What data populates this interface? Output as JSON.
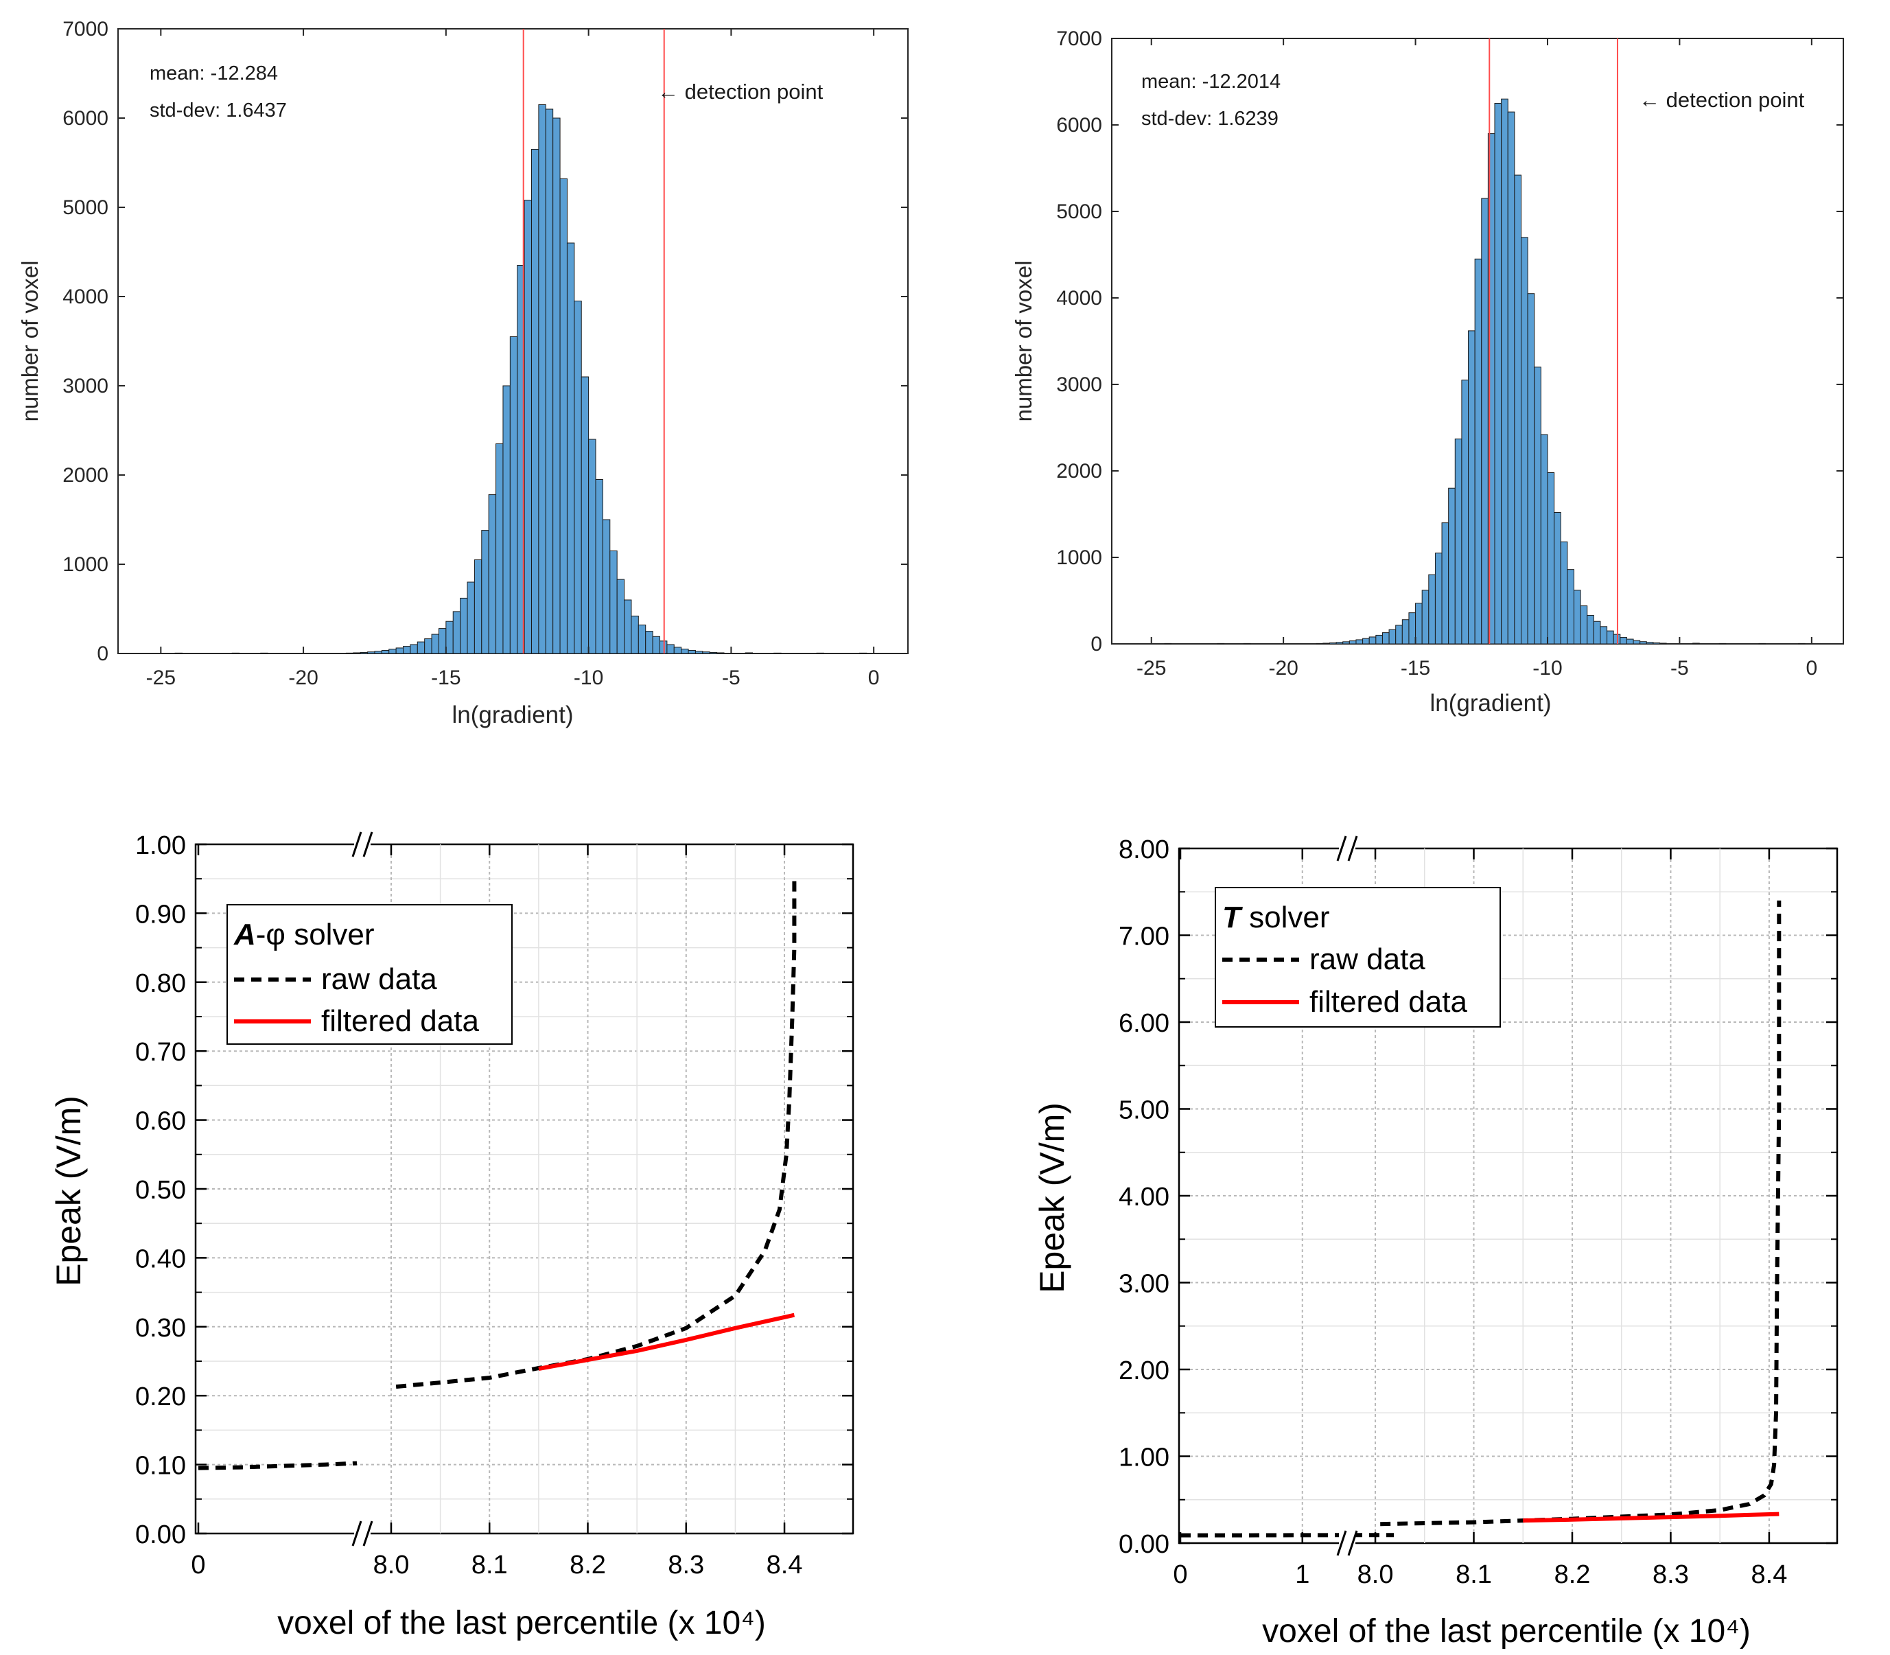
{
  "chart_data": [
    {
      "type": "bar",
      "panel": "top-left",
      "xlabel": "ln(gradient)",
      "ylabel": "number of voxel",
      "xlim": [
        -26.5,
        1.2
      ],
      "ylim": [
        0,
        7000
      ],
      "xticks": [
        -25,
        -20,
        -15,
        -10,
        -5,
        0
      ],
      "yticks": [
        0,
        1000,
        2000,
        3000,
        4000,
        5000,
        6000,
        7000
      ],
      "bin_width": 0.25,
      "bin_start": -18.5,
      "values": [
        5,
        8,
        12,
        18,
        25,
        35,
        48,
        62,
        80,
        100,
        130,
        165,
        215,
        280,
        360,
        470,
        620,
        800,
        1050,
        1380,
        1780,
        2350,
        3000,
        3550,
        4350,
        5080,
        5650,
        6150,
        6100,
        6000,
        5320,
        4600,
        3950,
        3100,
        2400,
        1950,
        1500,
        1150,
        830,
        600,
        420,
        320,
        250,
        190,
        140,
        100,
        70,
        50,
        35,
        25,
        18,
        12,
        8
      ],
      "tail_bins": [
        [
          -24.5,
          5
        ],
        [
          -22.5,
          5
        ],
        [
          -21.5,
          5
        ],
        [
          -4.5,
          8
        ],
        [
          -3.5,
          5
        ],
        [
          -2.0,
          5
        ],
        [
          -0.5,
          5
        ]
      ],
      "vlines": [
        -12.284,
        -7.35
      ],
      "annotations": [
        "mean: -12.284",
        "std-dev: 1.6437",
        "← detection point"
      ]
    },
    {
      "type": "bar",
      "panel": "top-right",
      "xlabel": "ln(gradient)",
      "ylabel": "number of voxel",
      "xlim": [
        -26.5,
        1.2
      ],
      "ylim": [
        0,
        7000
      ],
      "xticks": [
        -25,
        -20,
        -15,
        -10,
        -5,
        0
      ],
      "yticks": [
        0,
        1000,
        2000,
        3000,
        4000,
        5000,
        6000,
        7000
      ],
      "bin_width": 0.25,
      "bin_start": -18.75,
      "values": [
        5,
        8,
        12,
        18,
        25,
        35,
        48,
        62,
        80,
        100,
        130,
        165,
        215,
        280,
        360,
        470,
        620,
        800,
        1050,
        1400,
        1800,
        2370,
        3050,
        3620,
        4450,
        5150,
        5900,
        6250,
        6300,
        6150,
        5420,
        4700,
        4050,
        3200,
        2420,
        1980,
        1520,
        1180,
        860,
        620,
        440,
        330,
        260,
        200,
        150,
        110,
        75,
        55,
        38,
        26,
        18,
        12,
        8
      ],
      "tail_bins": [
        [
          -24.5,
          5
        ],
        [
          -22.5,
          5
        ],
        [
          -21.5,
          5
        ],
        [
          -4.5,
          8
        ],
        [
          -3.5,
          5
        ],
        [
          -2.0,
          5
        ],
        [
          -0.5,
          5
        ]
      ],
      "vlines": [
        -12.2014,
        -7.35
      ],
      "annotations": [
        "mean: -12.2014",
        "std-dev: 1.6239",
        "← detection point"
      ]
    },
    {
      "type": "line",
      "panel": "bottom-left",
      "xlabel": "voxel of the last percentile (x 10⁴)",
      "ylabel": "Epeak (V/m)",
      "ylim": [
        0,
        1.0
      ],
      "yticks": [
        "0.00",
        "0.10",
        "0.20",
        "0.30",
        "0.40",
        "0.50",
        "0.60",
        "0.70",
        "0.80",
        "0.90",
        "1.00"
      ],
      "x_segment_1": {
        "xlim": [
          0,
          0.75
        ],
        "ticks": [
          "0"
        ]
      },
      "x_segment_2": {
        "xlim": [
          7.97,
          8.46
        ],
        "ticks": [
          "8.0",
          "8.1",
          "8.2",
          "8.3",
          "8.4"
        ]
      },
      "legend_title": "A-φ solver",
      "legend_title_bold": "A",
      "legend_title_rest": "-φ solver",
      "series": [
        {
          "name": "raw data",
          "style": "dashed",
          "color": "#000000",
          "segment1": [
            [
              0,
              0.095
            ],
            [
              0.2,
              0.096
            ],
            [
              0.4,
              0.098
            ],
            [
              0.6,
              0.1
            ],
            [
              0.75,
              0.102
            ]
          ],
          "segment2": [
            [
              8.005,
              0.213
            ],
            [
              8.05,
              0.219
            ],
            [
              8.1,
              0.226
            ],
            [
              8.15,
              0.24
            ],
            [
              8.2,
              0.253
            ],
            [
              8.25,
              0.272
            ],
            [
              8.3,
              0.298
            ],
            [
              8.35,
              0.345
            ],
            [
              8.38,
              0.41
            ],
            [
              8.395,
              0.47
            ],
            [
              8.402,
              0.55
            ],
            [
              8.405,
              0.63
            ],
            [
              8.408,
              0.75
            ],
            [
              8.41,
              0.85
            ],
            [
              8.41,
              0.955
            ]
          ]
        },
        {
          "name": "filtered data",
          "style": "solid",
          "color": "#ff0000",
          "segment2": [
            [
              8.15,
              0.239
            ],
            [
              8.2,
              0.252
            ],
            [
              8.25,
              0.265
            ],
            [
              8.3,
              0.281
            ],
            [
              8.35,
              0.298
            ],
            [
              8.41,
              0.317
            ]
          ]
        }
      ]
    },
    {
      "type": "line",
      "panel": "bottom-right",
      "xlabel": "voxel of the last percentile (x 10⁴)",
      "ylabel": "Epeak (V/m)",
      "ylim": [
        0,
        8.0
      ],
      "yticks": [
        "0.00",
        "1.00",
        "2.00",
        "3.00",
        "4.00",
        "5.00",
        "6.00",
        "7.00",
        "8.00"
      ],
      "x_segment_1": {
        "xlim": [
          0,
          1.8
        ],
        "ticks": [
          "0",
          "1"
        ]
      },
      "x_segment_2": {
        "xlim": [
          7.97,
          8.46
        ],
        "ticks": [
          "8.0",
          "8.1",
          "8.2",
          "8.3",
          "8.4"
        ]
      },
      "legend_title": "T solver",
      "legend_title_bold": "T",
      "legend_title_rest": " solver",
      "series": [
        {
          "name": "raw data",
          "style": "dashed",
          "color": "#000000",
          "segment1": [
            [
              0,
              0.09
            ],
            [
              0.5,
              0.09
            ],
            [
              1.0,
              0.092
            ],
            [
              1.5,
              0.093
            ],
            [
              1.75,
              0.093
            ]
          ],
          "segment2": [
            [
              8.005,
              0.22
            ],
            [
              8.1,
              0.24
            ],
            [
              8.15,
              0.26
            ],
            [
              8.2,
              0.28
            ],
            [
              8.3,
              0.33
            ],
            [
              8.35,
              0.38
            ],
            [
              8.38,
              0.45
            ],
            [
              8.395,
              0.55
            ],
            [
              8.402,
              0.68
            ],
            [
              8.405,
              0.9
            ],
            [
              8.407,
              1.5
            ],
            [
              8.408,
              3.0
            ],
            [
              8.41,
              5.0
            ],
            [
              8.41,
              7.4
            ]
          ]
        },
        {
          "name": "filtered data",
          "style": "solid",
          "color": "#ff0000",
          "segment2": [
            [
              8.15,
              0.26
            ],
            [
              8.2,
              0.27
            ],
            [
              8.3,
              0.3
            ],
            [
              8.35,
              0.315
            ],
            [
              8.41,
              0.335
            ]
          ]
        }
      ]
    }
  ]
}
